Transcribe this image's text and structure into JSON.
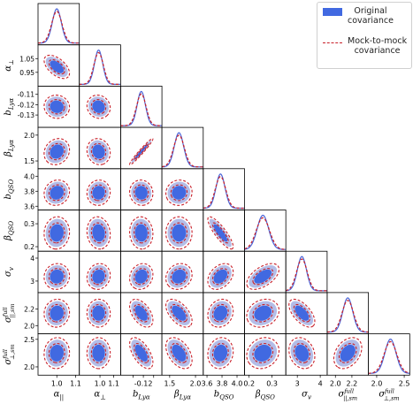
{
  "legend": {
    "original": "Original\ncovariance",
    "mock": "Mock-to-mock\ncovariance"
  },
  "colors": {
    "original_fill_outer": "#b3bde8",
    "original_fill_inner": "#4169e1",
    "mock_line": "#c8202a",
    "original_line": "#4a64d8"
  },
  "chart_data": {
    "type": "corner",
    "parameters": [
      {
        "label": "α||",
        "sub": "||",
        "sym": "α",
        "mean": 1.0,
        "sd": 0.024,
        "range": [
          0.9,
          1.12
        ],
        "ticks": [
          1.0,
          1.1
        ],
        "tick_labels": [
          "1.0",
          "1.1"
        ]
      },
      {
        "label": "α⊥",
        "sub": "⊥",
        "sym": "α",
        "mean": 0.99,
        "sd": 0.03,
        "range": [
          0.85,
          1.15
        ],
        "ticks": [
          1.0,
          1.1
        ],
        "tick_labels": [
          "1.0",
          "1.1"
        ]
      },
      {
        "label": "bLyα",
        "sub": "Lyα",
        "sym": "b",
        "mean": -0.122,
        "sd": 0.004,
        "range": [
          -0.142,
          -0.102
        ],
        "ticks": [
          -0.13,
          -0.12,
          -0.11
        ],
        "tick_labels": [
          "",
          "-0.12",
          ""
        ]
      },
      {
        "label": "βLyα",
        "sub": "Lyα",
        "sym": "β",
        "mean": 1.68,
        "sd": 0.09,
        "range": [
          1.35,
          2.15
        ],
        "ticks": [
          1.5,
          2.0
        ],
        "tick_labels": [
          "1.5",
          "2.0"
        ]
      },
      {
        "label": "bQSO",
        "sub": "QSO",
        "sym": "b",
        "mean": 3.78,
        "sd": 0.06,
        "range": [
          3.55,
          4.1
        ],
        "ticks": [
          3.6,
          3.8,
          4.0
        ],
        "tick_labels": [
          "3.6",
          "3.8",
          "4.0"
        ]
      },
      {
        "label": "βQSO",
        "sub": "QSO",
        "sym": "β",
        "mean": 0.26,
        "sd": 0.025,
        "range": [
          0.18,
          0.36
        ],
        "ticks": [
          0.2,
          0.3
        ],
        "tick_labels": [
          "0.2",
          "0.3"
        ]
      },
      {
        "label": "σv",
        "sub": "v",
        "sym": "σ",
        "mean": 3.2,
        "sd": 0.2,
        "range": [
          2.5,
          4.3
        ],
        "ticks": [
          3.0,
          4.0
        ],
        "tick_labels": [
          "3",
          "4"
        ]
      },
      {
        "label": "σfull||,sm",
        "sub": "||,sm",
        "sup": "full",
        "sym": "σ",
        "mean": 2.15,
        "sd": 0.06,
        "range": [
          1.9,
          2.4
        ],
        "ticks": [
          2.0,
          2.2
        ],
        "tick_labels": [
          "2.0",
          "2.2"
        ]
      },
      {
        "label": "σfull⊥,sm",
        "sub": "⊥,sm",
        "sup": "full",
        "sym": "σ",
        "mean": 2.25,
        "sd": 0.1,
        "range": [
          1.85,
          2.6
        ],
        "ticks": [
          2.0,
          2.5
        ],
        "tick_labels": [
          "2.0",
          "2.5"
        ]
      }
    ],
    "y_tick_overrides": {
      "1": {
        "ticks": [
          0.95,
          1.05
        ],
        "tick_labels": [
          "0.95",
          "1.05"
        ],
        "show": [
          "1.0",
          ""
        ]
      },
      "2": {
        "ticks": [
          -0.13,
          -0.12,
          -0.11
        ],
        "tick_labels": [
          "-0.13",
          "-0.12",
          "-0.11"
        ]
      },
      "3": {
        "ticks": [
          1.5,
          2.0
        ],
        "tick_labels": [
          "1.5",
          "2.0"
        ]
      },
      "4": {
        "ticks": [
          3.6,
          3.8,
          4.0
        ],
        "tick_labels": [
          "3.6",
          "3.8",
          "4.0"
        ]
      },
      "5": {
        "ticks": [
          0.2,
          0.3
        ],
        "tick_labels": [
          "0.2",
          "0.3"
        ]
      },
      "6": {
        "ticks": [
          3.0,
          4.0
        ],
        "tick_labels": [
          "3",
          "4"
        ]
      },
      "7": {
        "ticks": [
          2.0,
          2.2
        ],
        "tick_labels": [
          "2.0",
          "2.2"
        ]
      },
      "8": {
        "ticks": [
          2.0,
          2.5
        ],
        "tick_labels": [
          "2.0",
          "2.5"
        ]
      }
    },
    "correlations": {
      "1-0": -0.55,
      "2-0": -0.05,
      "2-1": -0.1,
      "3-0": 0.15,
      "3-1": -0.1,
      "3-2": 0.97,
      "4-0": 0.1,
      "4-1": 0.05,
      "4-2": -0.05,
      "4-3": 0.05,
      "5-0": 0.05,
      "5-1": -0.1,
      "5-2": -0.05,
      "5-3": 0.0,
      "5-4": -0.85,
      "6-0": 0.05,
      "6-1": 0.1,
      "6-2": 0.15,
      "6-3": 0.15,
      "6-4": 0.35,
      "6-5": 0.55,
      "7-0": 0.05,
      "7-1": 0.0,
      "7-2": -0.5,
      "7-3": -0.55,
      "7-4": 0.15,
      "7-5": 0.2,
      "7-6": -0.6,
      "8-0": 0.05,
      "8-1": 0.0,
      "8-2": -0.6,
      "8-3": -0.45,
      "8-4": 0.1,
      "8-5": 0.15,
      "8-6": -0.2,
      "8-7": 0.35
    },
    "mock_width_ratio": 1.15,
    "legend_position": "top-right"
  }
}
